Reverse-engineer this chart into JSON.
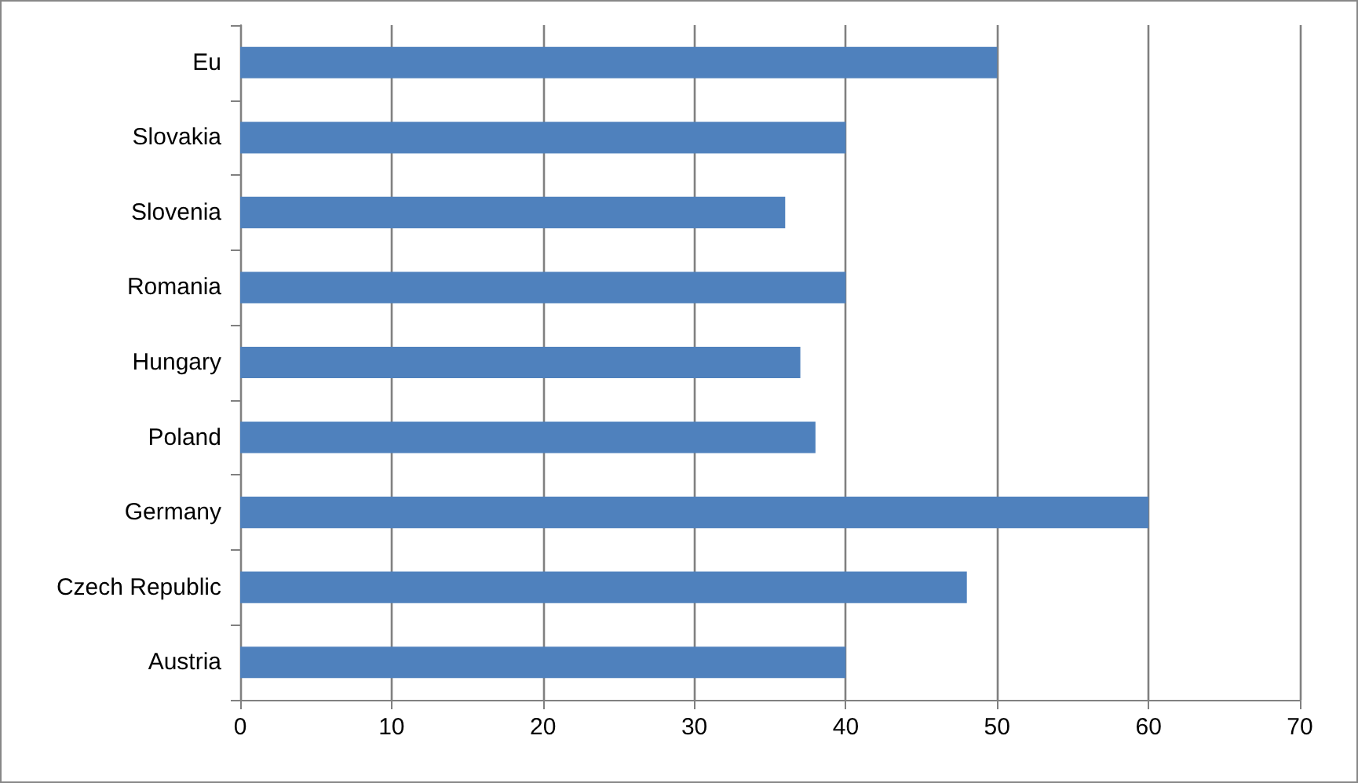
{
  "chart_data": {
    "type": "bar",
    "orientation": "horizontal",
    "categories": [
      "Eu",
      "Slovakia",
      "Slovenia",
      "Romania",
      "Hungary",
      "Poland",
      "Germany",
      "Czech Republic",
      "Austria"
    ],
    "values": [
      50,
      40,
      36,
      40,
      37,
      38,
      60,
      48,
      40
    ],
    "color": "#4f81bd",
    "xlim": [
      0,
      70
    ],
    "xticks": [
      0,
      10,
      20,
      30,
      40,
      50,
      60,
      70
    ],
    "grid": "x"
  }
}
